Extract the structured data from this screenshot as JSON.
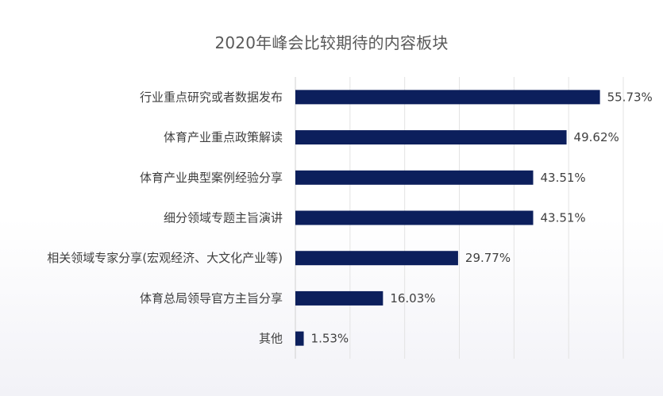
{
  "chart_data": {
    "type": "bar",
    "orientation": "horizontal",
    "title": "2020年峰会比较期待的内容板块",
    "categories": [
      "行业重点研究或者数据发布",
      "体育产业重点政策解读",
      "体育产业典型案例经验分享",
      "细分领域专题主旨演讲",
      "相关领域专家分享(宏观经济、大文化产业等)",
      "体育总局领导官方主旨分享",
      "其他"
    ],
    "values": [
      55.73,
      49.62,
      43.51,
      43.51,
      29.77,
      16.03,
      1.53
    ],
    "value_labels": [
      "55.73%",
      "49.62%",
      "43.51%",
      "43.51%",
      "29.77%",
      "16.03%",
      "1.53%"
    ],
    "xlim": [
      0,
      60
    ],
    "grid": true,
    "bar_color": "#0c1f5c",
    "legend": "none"
  }
}
